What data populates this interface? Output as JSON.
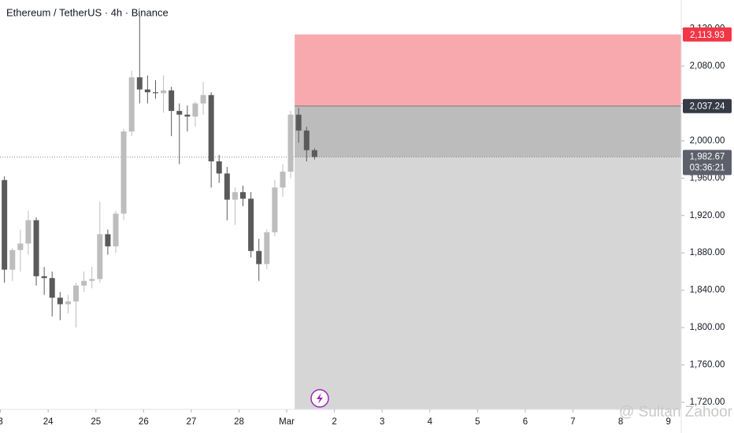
{
  "chart_data": {
    "type": "candlestick",
    "title": "Ethereum / TetherUS · 4h · Binance",
    "x": [
      23.083,
      23.25,
      23.417,
      23.583,
      23.75,
      23.917,
      24.083,
      24.25,
      24.417,
      24.583,
      24.75,
      24.917,
      25.083,
      25.25,
      25.417,
      25.583,
      25.75,
      25.917,
      26.083,
      26.25,
      26.417,
      26.583,
      26.75,
      26.917,
      27.083,
      27.25,
      27.417,
      27.583,
      27.75,
      27.917,
      28.083,
      28.25,
      28.417,
      28.583,
      28.75,
      28.917,
      29.083,
      29.25,
      29.417,
      29.583
    ],
    "open": [
      1958,
      1862,
      1883,
      1890,
      1915,
      1855,
      1853,
      1832,
      1825,
      1828,
      1845,
      1850,
      1852,
      1900,
      1887,
      1922,
      2010,
      2068,
      2055,
      2052,
      2051,
      2054,
      2032,
      2028,
      2026,
      2040,
      2049,
      1978,
      1965,
      1937,
      1945,
      1938,
      1882,
      1868,
      1902,
      1950,
      1967,
      2028,
      2011,
      1990
    ],
    "high": [
      1962,
      1885,
      1905,
      1925,
      1918,
      1865,
      1860,
      1838,
      1835,
      1848,
      1860,
      1865,
      1935,
      1905,
      1925,
      2013,
      2075,
      2134,
      2070,
      2065,
      2070,
      2058,
      2040,
      2038,
      2042,
      2063,
      2052,
      1985,
      1972,
      1950,
      1952,
      1945,
      1895,
      1905,
      1958,
      1975,
      2032,
      2035,
      2015,
      1992
    ],
    "low": [
      1848,
      1850,
      1860,
      1878,
      1845,
      1835,
      1812,
      1808,
      1815,
      1800,
      1838,
      1842,
      1848,
      1878,
      1880,
      1915,
      2005,
      2040,
      2040,
      2045,
      2030,
      2005,
      1975,
      2010,
      2015,
      2028,
      1950,
      1955,
      1915,
      1910,
      1930,
      1875,
      1850,
      1862,
      1898,
      1940,
      1960,
      1998,
      1978,
      1980
    ],
    "close": [
      1862,
      1883,
      1890,
      1915,
      1855,
      1853,
      1832,
      1825,
      1828,
      1845,
      1850,
      1852,
      1900,
      1887,
      1922,
      2010,
      2068,
      2055,
      2052,
      2051,
      2054,
      2032,
      2028,
      2026,
      2040,
      2049,
      1978,
      1965,
      1937,
      1945,
      1938,
      1882,
      1868,
      1902,
      1950,
      1967,
      2028,
      2011,
      1990,
      1982.67
    ],
    "up_color": "#bdbdbd",
    "down_color": "#5a5a5a",
    "xlim": [
      22.99,
      37.27
    ],
    "xticks": [
      {
        "value": 23,
        "label": "3"
      },
      24,
      25,
      26,
      27,
      28,
      {
        "value": 29,
        "label": "Mar"
      },
      {
        "value": 30,
        "label": "2"
      },
      {
        "value": 31,
        "label": "3"
      },
      {
        "value": 32,
        "label": "4"
      },
      {
        "value": 33,
        "label": "5"
      },
      {
        "value": 34,
        "label": "6"
      },
      {
        "value": 35,
        "label": "7"
      },
      {
        "value": 36,
        "label": "8"
      },
      {
        "value": 37,
        "label": "9"
      }
    ],
    "ylim": [
      1712.4,
      2150.8
    ],
    "yticks": [
      {
        "value": 1720,
        "label": "1,720.00"
      },
      {
        "value": 1760,
        "label": "1,760.00"
      },
      {
        "value": 1800,
        "label": "1,800.00"
      },
      {
        "value": 1840,
        "label": "1,840.00"
      },
      {
        "value": 1880,
        "label": "1,880.00"
      },
      {
        "value": 1920,
        "label": "1,920.00"
      },
      {
        "value": 1960,
        "label": "1,960.00"
      },
      {
        "value": 2000,
        "label": "2,000.00"
      },
      {
        "value": 2040,
        "label": "2,040.00"
      },
      {
        "value": 2080,
        "label": "2,080.00"
      },
      {
        "value": 2120,
        "label": "2,120.00"
      }
    ],
    "position": {
      "start_x": 29.167,
      "stop": {
        "value": 2113.93,
        "label": "2,113.93"
      },
      "entry": {
        "value": 2037.24,
        "label": "2,037.24"
      },
      "target": 1712.4,
      "stop_color": "#f7a9ad",
      "target_color": "#d6d6d6",
      "open_pnl_color": "#bcbcbc"
    },
    "current_price": {
      "value": 1982.67,
      "label": "1,982.67"
    },
    "countdown": "03:36:21",
    "watermark": "@ Sultan Zahoor"
  }
}
